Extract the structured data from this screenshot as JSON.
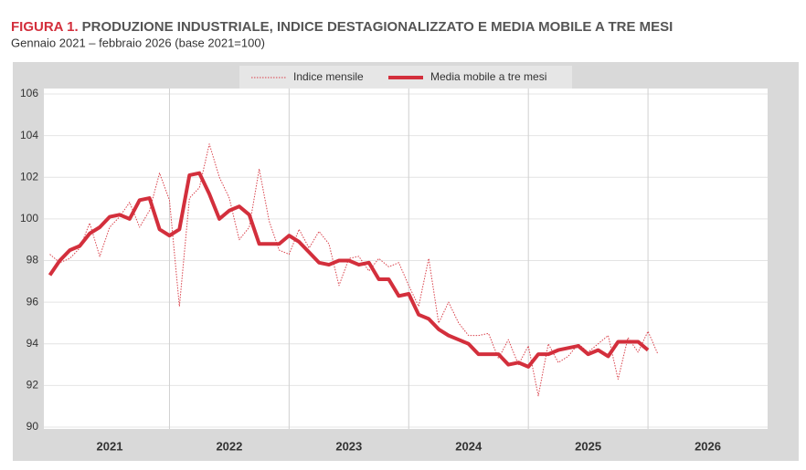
{
  "chart_data": {
    "type": "line",
    "figure_label": "FIGURA 1.",
    "title": "PRODUZIONE INDUSTRIALE, INDICE DESTAGIONALIZZATO E MEDIA MOBILE A TRE MESI",
    "subtitle": "Gennaio 2021 – febbraio 2026 (base 2021=100)",
    "x": [
      2021,
      2021.083,
      2021.167,
      2021.25,
      2021.333,
      2021.417,
      2021.5,
      2021.583,
      2021.667,
      2021.75,
      2021.833,
      2021.917,
      2022,
      2022.083,
      2022.167,
      2022.25,
      2022.333,
      2022.417,
      2022.5,
      2022.583,
      2022.667,
      2022.75,
      2022.833,
      2022.917,
      2023,
      2023.083,
      2023.167,
      2023.25,
      2023.333,
      2023.417,
      2023.5,
      2023.583,
      2023.667,
      2023.75,
      2023.833,
      2023.917,
      2024,
      2024.083,
      2024.167,
      2024.25,
      2024.333,
      2024.417,
      2024.5,
      2024.583,
      2024.667,
      2024.75,
      2024.833,
      2024.917,
      2025,
      2025.083,
      2025.167,
      2025.25,
      2025.333,
      2025.417,
      2025.5,
      2025.583,
      2025.667,
      2025.75,
      2025.833,
      2025.917,
      2026,
      2026.083
    ],
    "series": [
      {
        "name": "Indice mensile",
        "color": "#d9404a",
        "style": "dotted",
        "values": [
          98.3,
          97.9,
          98.1,
          98.6,
          99.8,
          98.2,
          99.6,
          100.1,
          100.8,
          99.6,
          100.4,
          102.2,
          100.9,
          95.8,
          101.0,
          101.5,
          103.6,
          102.0,
          101.0,
          99.0,
          99.6,
          102.4,
          99.9,
          98.5,
          98.3,
          99.5,
          98.6,
          99.4,
          98.8,
          96.8,
          98.1,
          98.2,
          97.5,
          98.1,
          97.7,
          97.9,
          96.8,
          95.8,
          98.1,
          95.0,
          96.0,
          95.0,
          94.4,
          94.4,
          94.5,
          93.3,
          94.2,
          93.0,
          93.9,
          91.5,
          94.0,
          93.1,
          93.4,
          94.0,
          93.6,
          94.0,
          94.4,
          92.3,
          94.3,
          93.6,
          94.6,
          93.5
        ]
      },
      {
        "name": "Media mobile a tre mesi",
        "color": "#d32f3c",
        "style": "solid",
        "values": [
          97.3,
          98.0,
          98.5,
          98.7,
          99.3,
          99.6,
          100.1,
          100.2,
          100.0,
          100.9,
          101.0,
          99.5,
          99.2,
          99.5,
          102.1,
          102.2,
          101.2,
          100.0,
          100.4,
          100.6,
          100.2,
          98.8,
          98.8,
          98.8,
          99.2,
          98.9,
          98.4,
          97.9,
          97.8,
          98.0,
          98.0,
          97.8,
          97.9,
          97.1,
          97.1,
          96.3,
          96.4,
          95.4,
          95.2,
          94.7,
          94.4,
          94.2,
          94.0,
          93.5,
          93.5,
          93.5,
          93.0,
          93.1,
          92.9,
          93.5,
          93.5,
          93.7,
          93.8,
          93.9,
          93.5,
          93.7,
          93.4,
          94.1,
          94.1,
          94.1,
          93.7,
          null
        ]
      }
    ],
    "xlim": [
      2020.95,
      2027
    ],
    "xticks": [
      {
        "value": 2021.5,
        "label": "2021"
      },
      {
        "value": 2022.5,
        "label": "2022"
      },
      {
        "value": 2023.5,
        "label": "2023"
      },
      {
        "value": 2024.5,
        "label": "2024"
      },
      {
        "value": 2025.5,
        "label": "2025"
      },
      {
        "value": 2026.5,
        "label": "2026"
      }
    ],
    "ylim": [
      90,
      106
    ],
    "yticks": [
      90,
      92,
      94,
      96,
      98,
      100,
      102,
      104,
      106
    ],
    "grid": true,
    "legend": "top"
  }
}
